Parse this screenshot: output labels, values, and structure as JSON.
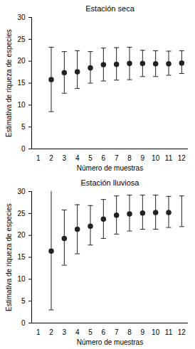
{
  "chart_data": [
    {
      "type": "scatter",
      "title": "Estación seca",
      "x_label": "Número de muestras",
      "y_label": "Estimativa de riqueza de especies",
      "x": [
        2,
        3,
        4,
        5,
        6,
        7,
        8,
        9,
        10,
        11,
        12
      ],
      "values": [
        15.8,
        17.4,
        17.6,
        18.5,
        19.2,
        19.3,
        19.5,
        19.5,
        19.4,
        19.4,
        19.6
      ],
      "lower": [
        8.5,
        12.7,
        13.8,
        15.0,
        15.5,
        15.7,
        15.8,
        16.5,
        16.5,
        16.8,
        17.2
      ],
      "upper": [
        23.2,
        22.2,
        22.4,
        22.2,
        23.0,
        23.1,
        23.2,
        22.5,
        22.4,
        22.3,
        22.4
      ],
      "color": "#222222",
      "marker": "circle",
      "xlim": [
        0.5,
        12.5
      ],
      "xticks": [
        1,
        2,
        3,
        4,
        5,
        6,
        7,
        8,
        9,
        10,
        11,
        12
      ],
      "ylim": [
        0,
        30
      ],
      "yticks": [
        0,
        5,
        10,
        15,
        20,
        25,
        30
      ],
      "grid": false
    },
    {
      "type": "scatter",
      "title": "Estación lluviosa",
      "x_label": "Número de muestras",
      "y_label": "Estimativa de riqueza de especies",
      "x": [
        2,
        3,
        4,
        5,
        6,
        7,
        8,
        9,
        10,
        11,
        12
      ],
      "values": [
        16.4,
        19.3,
        21.4,
        22.1,
        23.7,
        24.6,
        24.9,
        25.1,
        25.2,
        25.2,
        null
      ],
      "lower": [
        3.0,
        13.2,
        15.8,
        17.8,
        19.3,
        20.3,
        21.0,
        21.4,
        21.4,
        21.8,
        22.0
      ],
      "upper": [
        30.2,
        25.8,
        27.0,
        26.8,
        28.2,
        29.0,
        29.2,
        29.2,
        29.2,
        28.9,
        29.0
      ],
      "color": "#222222",
      "marker": "circle",
      "xlim": [
        0.5,
        12.5
      ],
      "xticks": [
        1,
        2,
        3,
        4,
        5,
        6,
        7,
        8,
        9,
        10,
        11,
        12
      ],
      "ylim": [
        0,
        30
      ],
      "yticks": [
        0,
        5,
        10,
        15,
        20,
        25,
        30
      ],
      "grid": false
    }
  ]
}
